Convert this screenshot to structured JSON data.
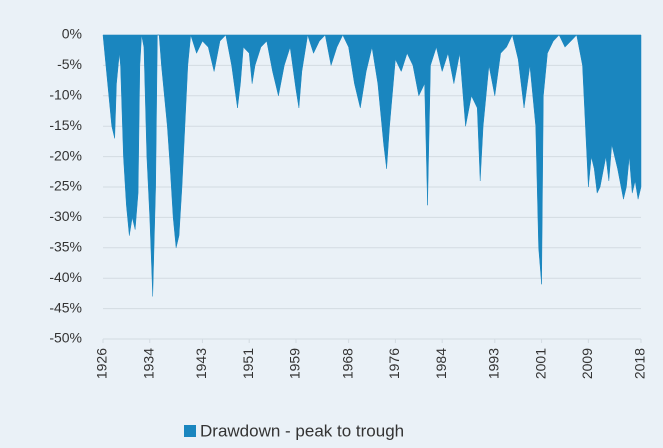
{
  "chart_data": {
    "type": "area",
    "ylim": [
      -50,
      0
    ],
    "yticks": [
      {
        "value": 0,
        "label": "0%"
      },
      {
        "value": -5,
        "label": "-5%"
      },
      {
        "value": -10,
        "label": "-10%"
      },
      {
        "value": -15,
        "label": "-15%"
      },
      {
        "value": -20,
        "label": "-20%"
      },
      {
        "value": -25,
        "label": "-25%"
      },
      {
        "value": -30,
        "label": "-30%"
      },
      {
        "value": -35,
        "label": "-35%"
      },
      {
        "value": -40,
        "label": "-40%"
      },
      {
        "value": -45,
        "label": "-45%"
      },
      {
        "value": -50,
        "label": "-50%"
      }
    ],
    "xlim": [
      1926,
      2018
    ],
    "xticks": [
      1926,
      1934,
      1943,
      1951,
      1959,
      1968,
      1976,
      1984,
      1993,
      2001,
      2009,
      2018
    ],
    "grid": true,
    "legend": "bottom",
    "x": [
      1926,
      1926.5,
      1927,
      1927.5,
      1928,
      1928.3,
      1928.8,
      1929,
      1929.5,
      1930,
      1930.5,
      1931,
      1931.5,
      1932,
      1932.3,
      1932.6,
      1933,
      1933.5,
      1934,
      1934.5,
      1935,
      1935.3,
      1935.6,
      1936,
      1937,
      1937.5,
      1938,
      1938.5,
      1939,
      1939.5,
      1940,
      1940.5,
      1941,
      1942,
      1943,
      1944,
      1945,
      1946,
      1947,
      1948,
      1949,
      1949.5,
      1950,
      1951,
      1951.5,
      1952,
      1953,
      1954,
      1955,
      1956,
      1957,
      1958,
      1959,
      1959.5,
      1960,
      1961,
      1962,
      1963,
      1964,
      1965,
      1966,
      1967,
      1968,
      1969,
      1970,
      1971,
      1972,
      1973,
      1974,
      1974.5,
      1975,
      1976,
      1977,
      1978,
      1979,
      1980,
      1981,
      1981.5,
      1982,
      1983,
      1984,
      1985,
      1986,
      1987,
      1988,
      1989,
      1990,
      1990.5,
      1991,
      1992,
      1993,
      1994,
      1995,
      1996,
      1997,
      1998,
      1999,
      2000,
      2000.5,
      2001,
      2001.3,
      2002,
      2003,
      2004,
      2005,
      2006,
      2007,
      2008,
      2009,
      2009.5,
      2010,
      2010.5,
      2011,
      2012,
      2012.5,
      2013,
      2014,
      2015,
      2015.5,
      2016,
      2016.5,
      2017,
      2017.5,
      2018
    ],
    "series": [
      {
        "name": "Drawdown - peak to trough",
        "color": "#1a86bf",
        "values": [
          0,
          -5,
          -10,
          -15,
          -17,
          -8,
          -3,
          -5,
          -20,
          -28,
          -33,
          -30,
          -32,
          -26,
          -5,
          0,
          -2,
          -20,
          -30,
          -43,
          -25,
          0,
          0,
          -5,
          -15,
          -22,
          -30,
          -35,
          -33,
          -25,
          -15,
          -5,
          0,
          -3,
          -1,
          -2,
          -6,
          -1,
          0,
          -5,
          -12,
          -8,
          -2,
          -3,
          -8,
          -5,
          -2,
          -1,
          -6,
          -10,
          -5,
          -2,
          -9,
          -12,
          -6,
          0,
          -3,
          -1,
          0,
          -5,
          -2,
          0,
          -2,
          -8,
          -12,
          -6,
          -2,
          -8,
          -18,
          -22,
          -15,
          -4,
          -6,
          -3,
          -5,
          -10,
          -8,
          -28,
          -5,
          -2,
          -6,
          -3,
          -8,
          -3,
          -15,
          -10,
          -12,
          -24,
          -15,
          -5,
          -10,
          -3,
          -2,
          0,
          -4,
          -12,
          -5,
          -15,
          -35,
          -41,
          -10,
          -3,
          -1,
          0,
          -2,
          -1,
          0,
          -5,
          -25,
          -20,
          -22,
          -26,
          -25,
          -20,
          -24,
          -18,
          -22,
          -27,
          -25,
          -20,
          -26,
          -24,
          -27,
          -25
        ]
      }
    ]
  }
}
